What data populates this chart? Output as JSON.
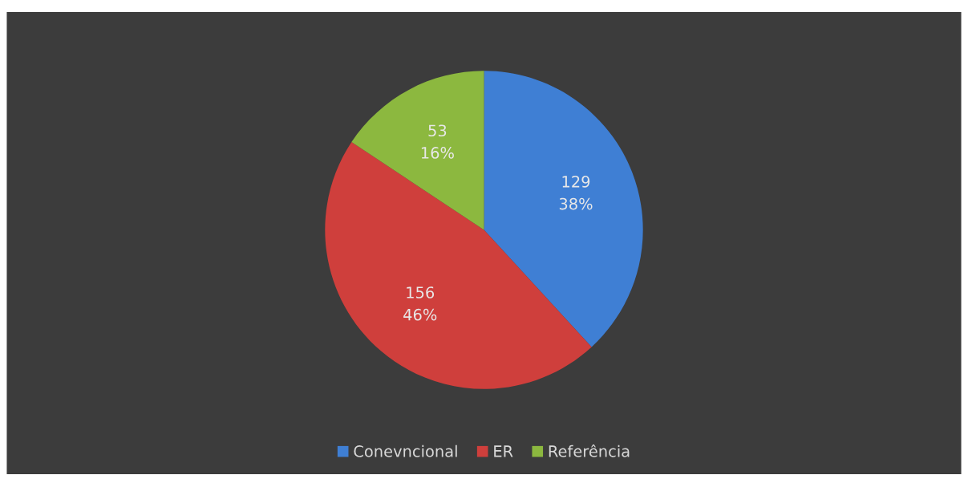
{
  "chart_data": {
    "type": "pie",
    "categories": [
      "Conevncional",
      "ER",
      "Referência"
    ],
    "values": [
      129,
      156,
      53
    ],
    "colors": [
      "#3f7fd4",
      "#cf3f3c",
      "#8cb83f"
    ],
    "value_labels": [
      "129\n38%",
      "156\n46%",
      "53\n16%"
    ],
    "legend": "bottom"
  }
}
